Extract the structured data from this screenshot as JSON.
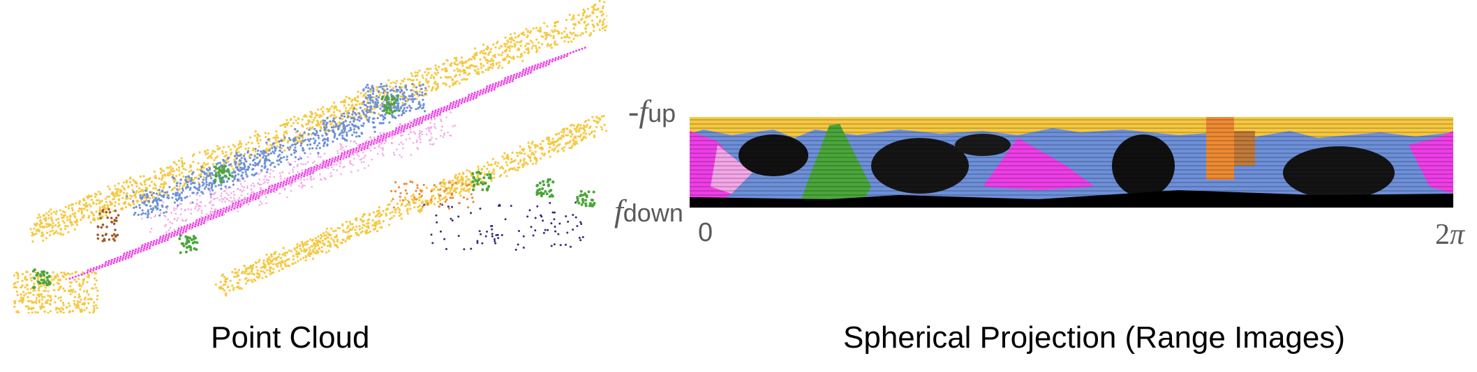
{
  "left_panel": {
    "caption": "Point Cloud"
  },
  "right_panel": {
    "caption": "Spherical Projection (Range Images)",
    "y_top_label": {
      "prefix": "-",
      "symbol": "f",
      "subscript": "up"
    },
    "y_bottom_label": {
      "symbol": "f",
      "subscript": "down"
    },
    "x_start_label": "0",
    "x_end_label": {
      "coefficient": "2",
      "symbol": "π"
    }
  },
  "colors": {
    "road": "#ee3ee7",
    "building": "#f6c840",
    "car": "#6d90d9",
    "vegetation": "#4aa63a",
    "trunk": "#a35a2a",
    "pole": "#ee8a33",
    "empty": "#000000",
    "light_pink": "#f4a7e8"
  }
}
